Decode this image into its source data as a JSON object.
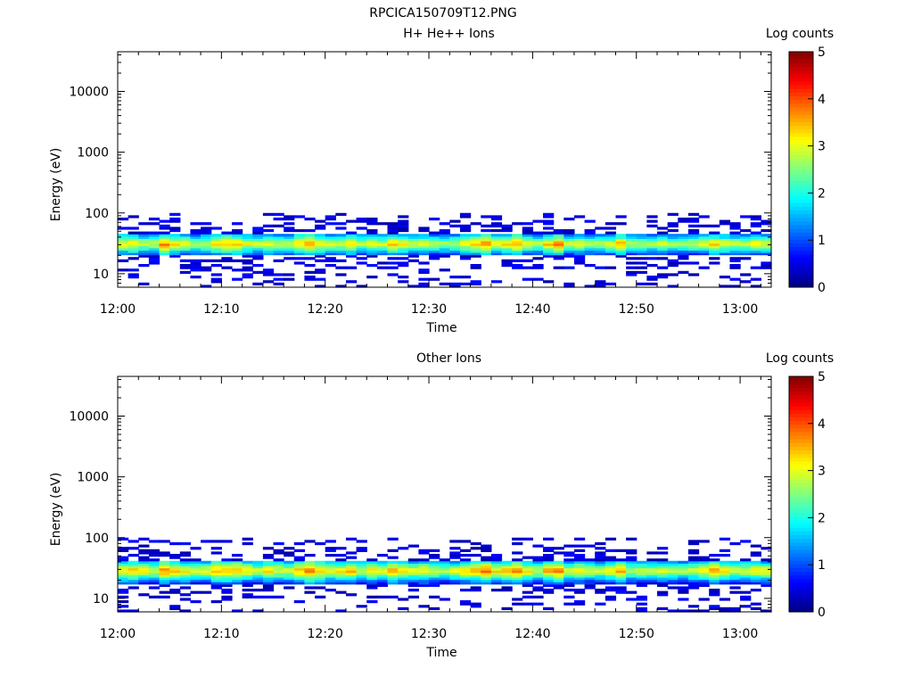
{
  "page_title": "RPCICA150709T12.PNG",
  "chart_data": [
    {
      "type": "heatmap",
      "title": "H+ He++ Ions",
      "xlabel": "Time",
      "ylabel": "Energy (eV)",
      "x_tick_labels": [
        "12:00",
        "12:10",
        "12:20",
        "12:30",
        "12:40",
        "12:50",
        "13:00"
      ],
      "x_range": [
        "12:00",
        "13:03"
      ],
      "y_scale": "log",
      "ylim": [
        6,
        45000
      ],
      "y_tick_labels": [
        "10",
        "100",
        "1000",
        "10000"
      ],
      "colorbar": {
        "label": "Log counts",
        "range": [
          0,
          5
        ],
        "tick_labels": [
          "0",
          "1",
          "2",
          "3",
          "4",
          "5"
        ]
      },
      "core_band_energy_eV": [
        22,
        45
      ],
      "peak_log_counts": [
        3.3,
        3.4,
        3.1,
        3.0,
        3.8,
        3.4,
        3.2,
        3.0,
        3.1,
        3.5,
        3.6,
        3.6,
        3.2,
        3.0,
        3.3,
        3.1,
        3.0,
        3.4,
        3.8,
        3.4,
        3.1,
        3.2,
        3.5,
        3.0,
        3.2,
        3.1,
        3.5,
        3.3,
        3.1,
        3.2,
        3.0,
        2.9,
        3.0,
        3.3,
        3.5,
        3.9,
        3.3,
        3.4,
        3.7,
        3.2,
        3.0,
        3.5,
        3.8,
        3.0,
        3.2,
        3.0,
        2.9,
        3.1,
        3.6,
        2.9,
        2.9,
        2.9,
        3.0,
        2.9,
        2.8,
        3.0,
        3.1,
        3.5,
        3.2,
        3.0,
        3.1,
        3.2,
        3.1
      ]
    },
    {
      "type": "heatmap",
      "title": "Other Ions",
      "xlabel": "Time",
      "ylabel": "Energy (eV)",
      "x_tick_labels": [
        "12:00",
        "12:10",
        "12:20",
        "12:30",
        "12:40",
        "12:50",
        "13:00"
      ],
      "x_range": [
        "12:00",
        "13:03"
      ],
      "y_scale": "log",
      "ylim": [
        6,
        45000
      ],
      "y_tick_labels": [
        "10",
        "100",
        "1000",
        "10000"
      ],
      "colorbar": {
        "label": "Log counts",
        "range": [
          0,
          5
        ],
        "tick_labels": [
          "0",
          "1",
          "2",
          "3",
          "4",
          "5"
        ]
      },
      "core_band_energy_eV": [
        20,
        42
      ],
      "peak_log_counts": [
        3.4,
        3.5,
        3.2,
        3.1,
        3.8,
        3.5,
        3.3,
        3.1,
        3.2,
        3.6,
        3.7,
        3.6,
        3.3,
        3.1,
        3.4,
        3.2,
        3.1,
        3.5,
        3.9,
        3.5,
        3.2,
        3.3,
        3.6,
        3.1,
        3.3,
        3.2,
        3.6,
        3.4,
        3.2,
        3.3,
        3.1,
        3.0,
        3.1,
        3.4,
        3.6,
        3.9,
        3.4,
        3.5,
        3.8,
        3.3,
        3.1,
        3.6,
        3.9,
        3.1,
        3.3,
        3.1,
        3.0,
        3.2,
        3.7,
        3.0,
        3.0,
        3.0,
        3.1,
        3.0,
        2.9,
        3.1,
        3.2,
        3.6,
        3.3,
        3.1,
        3.2,
        3.3,
        3.2
      ]
    }
  ]
}
